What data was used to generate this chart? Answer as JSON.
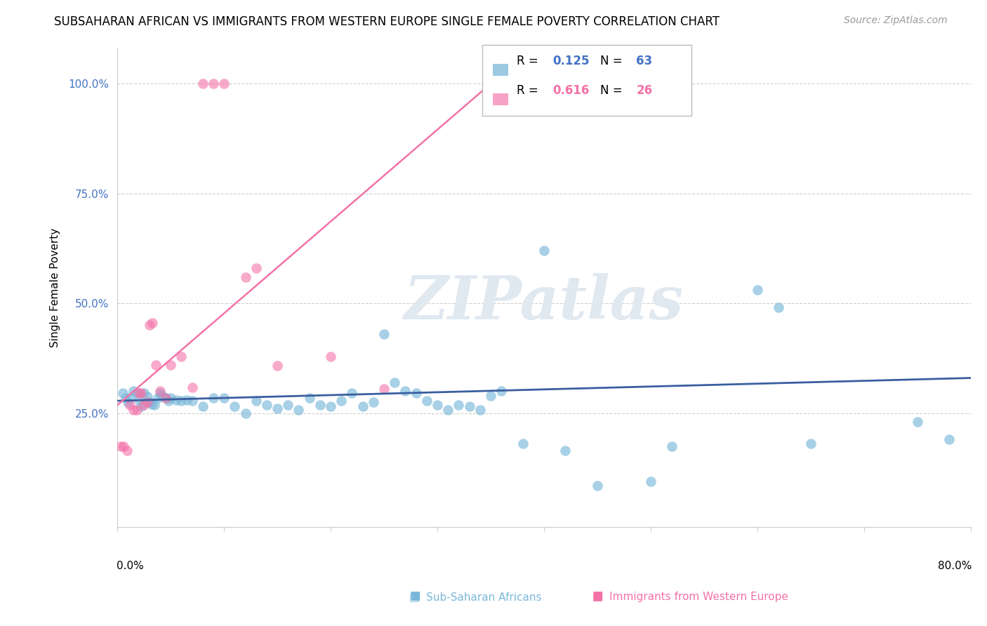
{
  "title": "SUBSAHARAN AFRICAN VS IMMIGRANTS FROM WESTERN EUROPE SINGLE FEMALE POVERTY CORRELATION CHART",
  "source": "Source: ZipAtlas.com",
  "ylabel": "Single Female Poverty",
  "xlim": [
    0.0,
    0.8
  ],
  "ylim": [
    -0.01,
    1.08
  ],
  "yticks": [
    0.25,
    0.5,
    0.75,
    1.0
  ],
  "ytick_labels": [
    "25.0%",
    "50.0%",
    "75.0%",
    "100.0%"
  ],
  "blue_R": "0.125",
  "blue_N": "63",
  "pink_R": "0.616",
  "pink_N": "26",
  "blue_color": "#7ab8d9",
  "pink_color": "#f472a8",
  "blue_line_color": "#3a5fa0",
  "pink_line_color": "#f472a8",
  "watermark": "ZIPatlas",
  "blue_label": "Sub-Saharan Africans",
  "pink_label": "Immigrants from Western Europe",
  "blue_scatter_x": [
    0.005,
    0.008,
    0.01,
    0.012,
    0.015,
    0.018,
    0.02,
    0.022,
    0.025,
    0.028,
    0.03,
    0.032,
    0.035,
    0.038,
    0.04,
    0.042,
    0.045,
    0.048,
    0.05,
    0.055,
    0.06,
    0.065,
    0.07,
    0.08,
    0.09,
    0.1,
    0.11,
    0.12,
    0.13,
    0.14,
    0.15,
    0.16,
    0.17,
    0.18,
    0.19,
    0.2,
    0.21,
    0.22,
    0.23,
    0.24,
    0.25,
    0.26,
    0.27,
    0.28,
    0.29,
    0.3,
    0.31,
    0.32,
    0.33,
    0.34,
    0.35,
    0.36,
    0.38,
    0.4,
    0.42,
    0.45,
    0.5,
    0.52,
    0.6,
    0.62,
    0.65,
    0.75,
    0.78
  ],
  "blue_scatter_y": [
    0.295,
    0.285,
    0.275,
    0.285,
    0.3,
    0.295,
    0.28,
    0.265,
    0.295,
    0.288,
    0.275,
    0.27,
    0.268,
    0.285,
    0.295,
    0.29,
    0.285,
    0.278,
    0.285,
    0.28,
    0.278,
    0.28,
    0.278,
    0.265,
    0.285,
    0.285,
    0.265,
    0.25,
    0.278,
    0.268,
    0.26,
    0.268,
    0.258,
    0.285,
    0.268,
    0.265,
    0.278,
    0.295,
    0.265,
    0.275,
    0.43,
    0.32,
    0.3,
    0.295,
    0.278,
    0.268,
    0.258,
    0.268,
    0.265,
    0.258,
    0.29,
    0.3,
    0.18,
    0.62,
    0.165,
    0.085,
    0.095,
    0.175,
    0.53,
    0.49,
    0.18,
    0.23,
    0.19
  ],
  "pink_scatter_x": [
    0.003,
    0.006,
    0.009,
    0.012,
    0.015,
    0.018,
    0.02,
    0.022,
    0.025,
    0.028,
    0.03,
    0.033,
    0.036,
    0.04,
    0.045,
    0.05,
    0.06,
    0.07,
    0.08,
    0.09,
    0.1,
    0.12,
    0.13,
    0.15,
    0.2,
    0.25
  ],
  "pink_scatter_y": [
    0.175,
    0.175,
    0.165,
    0.268,
    0.258,
    0.258,
    0.295,
    0.295,
    0.268,
    0.275,
    0.45,
    0.455,
    0.36,
    0.3,
    0.285,
    0.36,
    0.378,
    0.308,
    1.0,
    1.0,
    1.0,
    0.56,
    0.58,
    0.358,
    0.378,
    0.305
  ],
  "blue_line_x": [
    0.0,
    0.8
  ],
  "blue_line_y": [
    0.278,
    0.33
  ],
  "pink_line_x": [
    0.0,
    0.355
  ],
  "pink_line_y": [
    0.268,
    1.01
  ]
}
